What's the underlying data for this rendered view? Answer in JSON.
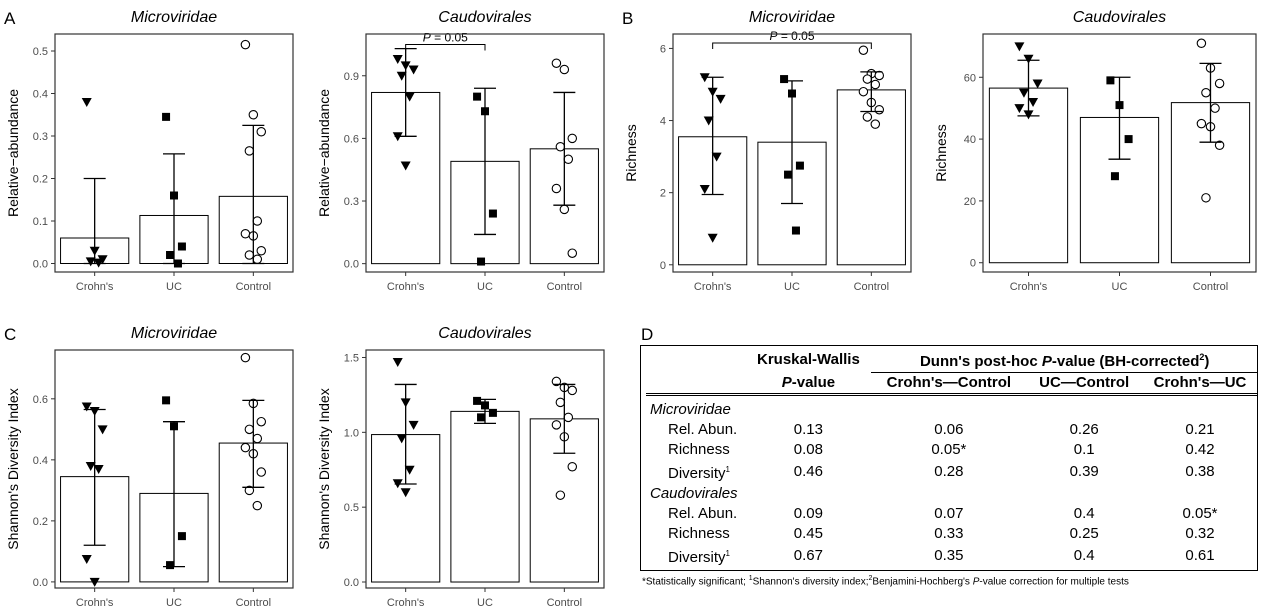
{
  "panel_letters": {
    "a": "A",
    "b": "B",
    "c": "C",
    "d": "D"
  },
  "chart_data": [
    {
      "type": "bar",
      "panel": "A",
      "title": "Microviridae",
      "ylabel": "Relative−abundance",
      "categories": [
        "Crohn's",
        "UC",
        "Control"
      ],
      "values": [
        0.06,
        0.113,
        0.158
      ],
      "error": [
        [
          0.0,
          0.2
        ],
        [
          0.0,
          0.258
        ],
        [
          0.0,
          0.325
        ]
      ],
      "ylim": [
        -0.02,
        0.54
      ],
      "yticks": [
        "0.0",
        "0.1",
        "0.2",
        "0.3",
        "0.4",
        "0.5"
      ],
      "points": [
        [
          0.38,
          0.03,
          0.01,
          0.005,
          0.002
        ],
        [
          0.345,
          0.16,
          0.04,
          0.02,
          0.0
        ],
        [
          0.515,
          0.35,
          0.31,
          0.265,
          0.1,
          0.07,
          0.065,
          0.03,
          0.02,
          0.01
        ]
      ],
      "annotation": null
    },
    {
      "type": "bar",
      "panel": "A",
      "title": "Caudovirales",
      "ylabel": "Relative−abundance",
      "categories": [
        "Crohn's",
        "UC",
        "Control"
      ],
      "values": [
        0.82,
        0.49,
        0.55
      ],
      "error": [
        [
          0.61,
          1.03
        ],
        [
          0.14,
          0.84
        ],
        [
          0.28,
          0.82
        ]
      ],
      "ylim": [
        -0.04,
        1.1
      ],
      "yticks": [
        "0.0",
        "0.3",
        "0.6",
        "0.9"
      ],
      "points": [
        [
          0.98,
          0.95,
          0.93,
          0.9,
          0.8,
          0.61,
          0.47
        ],
        [
          0.8,
          0.73,
          0.24,
          0.01
        ],
        [
          0.96,
          0.93,
          0.6,
          0.56,
          0.5,
          0.36,
          0.26,
          0.05
        ]
      ],
      "annotation": {
        "text": "P = 0.05",
        "from": 0,
        "to": 1,
        "y": 1.05
      }
    },
    {
      "type": "bar",
      "panel": "B",
      "title": "Microviridae",
      "ylabel": "Richness",
      "categories": [
        "Crohn's",
        "UC",
        "Control"
      ],
      "values": [
        3.55,
        3.4,
        4.85
      ],
      "error": [
        [
          1.95,
          5.2
        ],
        [
          1.7,
          5.1
        ],
        [
          4.25,
          5.35
        ]
      ],
      "ylim": [
        -0.2,
        6.4
      ],
      "yticks": [
        "0",
        "2",
        "4",
        "6"
      ],
      "points": [
        [
          5.2,
          4.8,
          4.6,
          4.0,
          3.0,
          2.1,
          0.75
        ],
        [
          5.15,
          4.75,
          2.75,
          2.5,
          0.95
        ],
        [
          5.95,
          5.3,
          5.25,
          5.15,
          5.0,
          4.8,
          4.5,
          4.3,
          4.1,
          3.9
        ]
      ],
      "annotation": {
        "text": "P = 0.05",
        "from": 0,
        "to": 2,
        "y": 6.15
      }
    },
    {
      "type": "bar",
      "panel": "B",
      "title": "Caudovirales",
      "ylabel": "Richness",
      "categories": [
        "Crohn's",
        "UC",
        "Control"
      ],
      "values": [
        56.5,
        47,
        51.8
      ],
      "error": [
        [
          47.5,
          65.5
        ],
        [
          33.5,
          60
        ],
        [
          39,
          64.5
        ]
      ],
      "ylim": [
        -3,
        74
      ],
      "yticks": [
        "0",
        "20",
        "40",
        "60"
      ],
      "points": [
        [
          70,
          66,
          58,
          55,
          52,
          50,
          48
        ],
        [
          59,
          51,
          40,
          28
        ],
        [
          71,
          63,
          58,
          55,
          50,
          45,
          44,
          38,
          21
        ]
      ],
      "annotation": null
    },
    {
      "type": "bar",
      "panel": "C",
      "title": "Microviridae",
      "ylabel": "Shannon's Diversity Index",
      "categories": [
        "Crohn's",
        "UC",
        "Control"
      ],
      "values": [
        0.345,
        0.29,
        0.455
      ],
      "error": [
        [
          0.12,
          0.565
        ],
        [
          0.05,
          0.525
        ],
        [
          0.31,
          0.595
        ]
      ],
      "ylim": [
        -0.02,
        0.76
      ],
      "yticks": [
        "0.0",
        "0.2",
        "0.4",
        "0.6"
      ],
      "points": [
        [
          0.575,
          0.56,
          0.5,
          0.38,
          0.37,
          0.075,
          0.0
        ],
        [
          0.595,
          0.51,
          0.15,
          0.055
        ],
        [
          0.735,
          0.585,
          0.525,
          0.5,
          0.47,
          0.44,
          0.42,
          0.36,
          0.3,
          0.25
        ]
      ],
      "annotation": null
    },
    {
      "type": "bar",
      "panel": "C",
      "title": "Caudovirales",
      "ylabel": "Shannon's Diversity Index",
      "categories": [
        "Crohn's",
        "UC",
        "Control"
      ],
      "values": [
        0.985,
        1.14,
        1.09
      ],
      "error": [
        [
          0.655,
          1.32
        ],
        [
          1.06,
          1.22
        ],
        [
          0.86,
          1.32
        ]
      ],
      "ylim": [
        -0.04,
        1.55
      ],
      "yticks": [
        "0.0",
        "0.5",
        "1.0",
        "1.5"
      ],
      "points": [
        [
          1.47,
          1.2,
          1.05,
          0.96,
          0.75,
          0.66,
          0.6
        ],
        [
          1.21,
          1.18,
          1.13,
          1.1
        ],
        [
          1.34,
          1.3,
          1.28,
          1.2,
          1.1,
          1.05,
          0.97,
          0.77,
          0.58
        ]
      ],
      "annotation": null
    }
  ],
  "table": {
    "head": {
      "kw_line1": "Kruskal-Wallis",
      "kw_line2_italic": "P",
      "kw_line2_rest": "-value",
      "dunn_prefix": "Dunn's post-hoc ",
      "dunn_italic": "P",
      "dunn_suffix": "-value (BH-corrected",
      "dunn_sup": "2",
      "dunn_close": ")",
      "col1": "Crohn's—Control",
      "col2": "UC—Control",
      "col3": "Crohn's—UC"
    },
    "groups": [
      {
        "name": "Microviridae",
        "rows": [
          {
            "label": "Rel. Abun.",
            "sup": "",
            "kw": "0.13",
            "c1": "0.06",
            "c2": "0.26",
            "c3": "0.21"
          },
          {
            "label": "Richness",
            "sup": "",
            "kw": "0.08",
            "c1": "0.05*",
            "c2": "0.1",
            "c3": "0.42"
          },
          {
            "label": "Diversity",
            "sup": "1",
            "kw": "0.46",
            "c1": "0.28",
            "c2": "0.39",
            "c3": "0.38"
          }
        ]
      },
      {
        "name": "Caudovirales",
        "rows": [
          {
            "label": "Rel. Abun.",
            "sup": "",
            "kw": "0.09",
            "c1": "0.07",
            "c2": "0.4",
            "c3": "0.05*"
          },
          {
            "label": "Richness",
            "sup": "",
            "kw": "0.45",
            "c1": "0.33",
            "c2": "0.25",
            "c3": "0.32"
          },
          {
            "label": "Diversity",
            "sup": "1",
            "kw": "0.67",
            "c1": "0.35",
            "c2": "0.4",
            "c3": "0.61"
          }
        ]
      }
    ],
    "footnote": {
      "part1": "*Statistically significant; ",
      "sup1": "1",
      "part2": "Shannon's diversity index;",
      "sup2": "2",
      "part3": "Benjamini-Hochberg's ",
      "italic": "P",
      "part4": "-value correction for multiple tests"
    }
  },
  "colors": {
    "ink": "#000000",
    "bar_fill": "#ffffff",
    "panel_border": "#333333",
    "axis_text": "#4d4d4d"
  }
}
